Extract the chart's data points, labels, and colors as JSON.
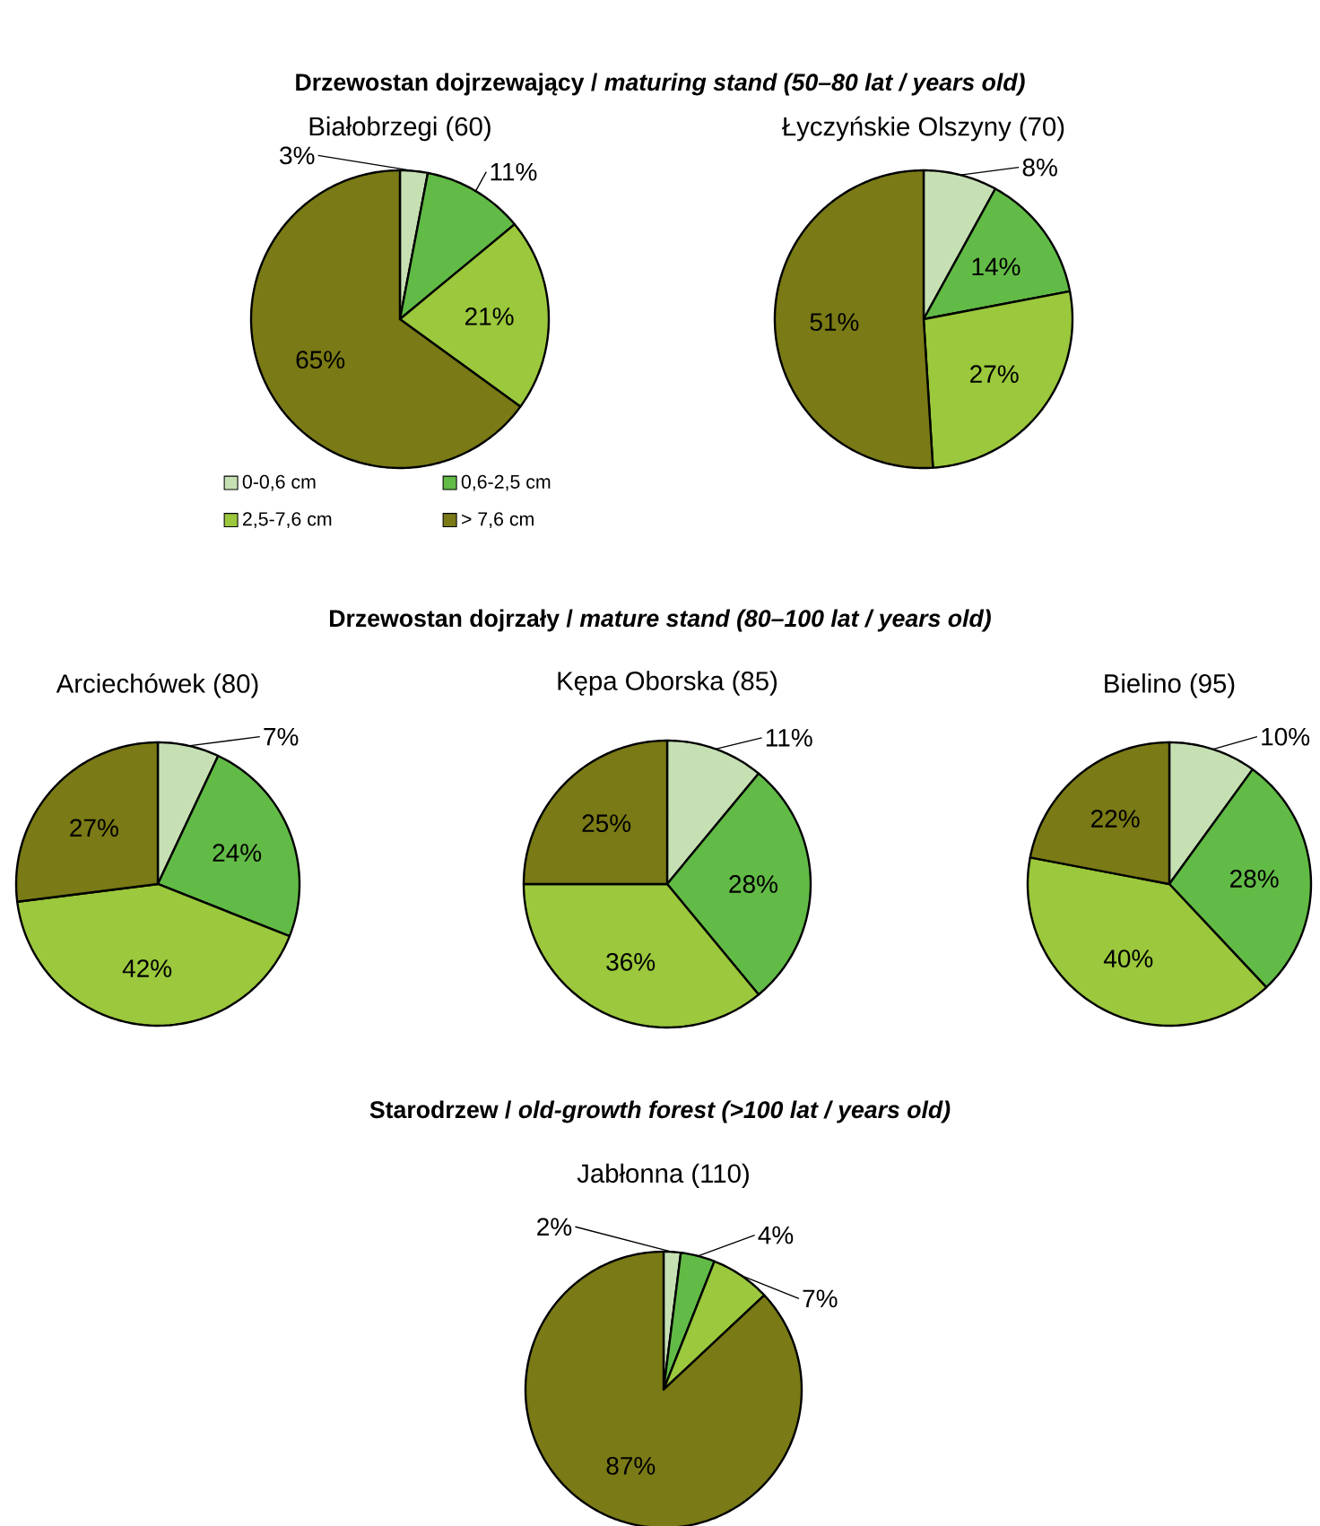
{
  "chart_data": [
    {
      "type": "pie",
      "title": "Drzewostan dojrzewający / *maturing stand (50–80 lat / years old)*",
      "subtitle": "Białobrzegi (60)",
      "categories": [
        "0-0,6 cm",
        "0,6-2,5 cm",
        "2,5-7,6 cm",
        "> 7,6 cm"
      ],
      "values": [
        3,
        11,
        21,
        65
      ],
      "value_labels": [
        "3%",
        "11%",
        "21%",
        "65%"
      ],
      "colors": [
        "#c6e0b4",
        "#62bb46",
        "#9bc83c",
        "#7a7a16"
      ],
      "legend": "bottom"
    },
    {
      "type": "pie",
      "title": "Łyczyńskie Olszyny (70)",
      "values": [
        8,
        14,
        27,
        51
      ],
      "value_labels": [
        "8%",
        "14%",
        "27%",
        "51%"
      ],
      "colors": [
        "#c6e0b4",
        "#62bb46",
        "#9bc83c",
        "#7a7a16"
      ]
    },
    {
      "type": "pie",
      "title": "Arciechówek (80)",
      "values": [
        7,
        24,
        42,
        27
      ],
      "value_labels": [
        "7%",
        "24%",
        "42%",
        "27%"
      ],
      "colors": [
        "#c6e0b4",
        "#62bb46",
        "#9bc83c",
        "#7a7a16"
      ]
    },
    {
      "type": "pie",
      "title": "Drzewostan dojrzały / *mature stand (80–100 lat / years old)*",
      "subtitle": "Kępa Oborska (85)",
      "values": [
        11,
        28,
        36,
        25
      ],
      "value_labels": [
        "11%",
        "28%",
        "36%",
        "25%"
      ],
      "colors": [
        "#c6e0b4",
        "#62bb46",
        "#9bc83c",
        "#7a7a16"
      ]
    },
    {
      "type": "pie",
      "title": "Bielino (95)",
      "values": [
        10,
        28,
        40,
        22
      ],
      "value_labels": [
        "10%",
        "28%",
        "40%",
        "22%"
      ],
      "colors": [
        "#c6e0b4",
        "#62bb46",
        "#9bc83c",
        "#7a7a16"
      ]
    },
    {
      "type": "pie",
      "title": "Starodrzew / *old-growth forest (>100 lat / years old)*",
      "subtitle": "Jabłonna (110)",
      "values": [
        2,
        4,
        7,
        87
      ],
      "value_labels": [
        "2%",
        "4%",
        "7%",
        "87%"
      ],
      "colors": [
        "#c6e0b4",
        "#62bb46",
        "#9bc83c",
        "#7a7a16"
      ]
    }
  ]
}
